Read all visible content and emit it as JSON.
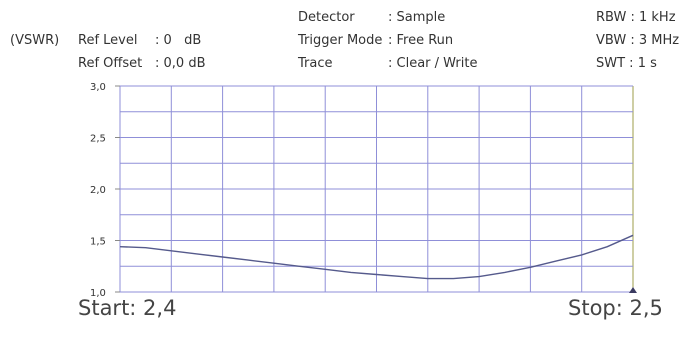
{
  "header": {
    "unit": "(VSWR)",
    "ref_level_label": "Ref Level",
    "ref_level_value": ": 0   dB",
    "ref_offset_label": "Ref Offset",
    "ref_offset_value": ": 0,0 dB",
    "detector_label": "Detector",
    "detector_value": ": Sample",
    "trigger_label": "Trigger Mode",
    "trigger_value": ": Free Run",
    "trace_label": "Trace",
    "trace_value": ": Clear / Write",
    "rbw": "RBW : 1 kHz",
    "vbw": "VBW : 3 MHz",
    "swt": "SWT : 1 s"
  },
  "range": {
    "start": "Start: 2,4",
    "stop": "Stop: 2,5"
  },
  "colors": {
    "grid": "#8f8fd8",
    "trace": "#555a8c",
    "marker": "#3a3a60"
  },
  "chart_data": {
    "type": "line",
    "ylim": [
      1.0,
      3.0
    ],
    "yticks": [
      "3,0",
      "2,5",
      "2,0",
      "1,5",
      "1,0"
    ],
    "ytick_values": [
      3.0,
      2.5,
      2.0,
      1.5,
      1.0
    ],
    "x_divisions": 10,
    "grid": true,
    "series": [
      {
        "x": [
          0.0,
          0.05,
          0.1,
          0.15,
          0.2,
          0.25,
          0.3,
          0.35,
          0.4,
          0.45,
          0.5,
          0.55,
          0.6,
          0.65,
          0.7,
          0.75,
          0.8,
          0.85,
          0.9,
          0.95,
          1.0
        ],
        "values": [
          1.44,
          1.43,
          1.4,
          1.37,
          1.34,
          1.31,
          1.28,
          1.25,
          1.22,
          1.19,
          1.17,
          1.15,
          1.13,
          1.13,
          1.15,
          1.19,
          1.24,
          1.3,
          1.36,
          1.44,
          1.55
        ]
      }
    ]
  }
}
